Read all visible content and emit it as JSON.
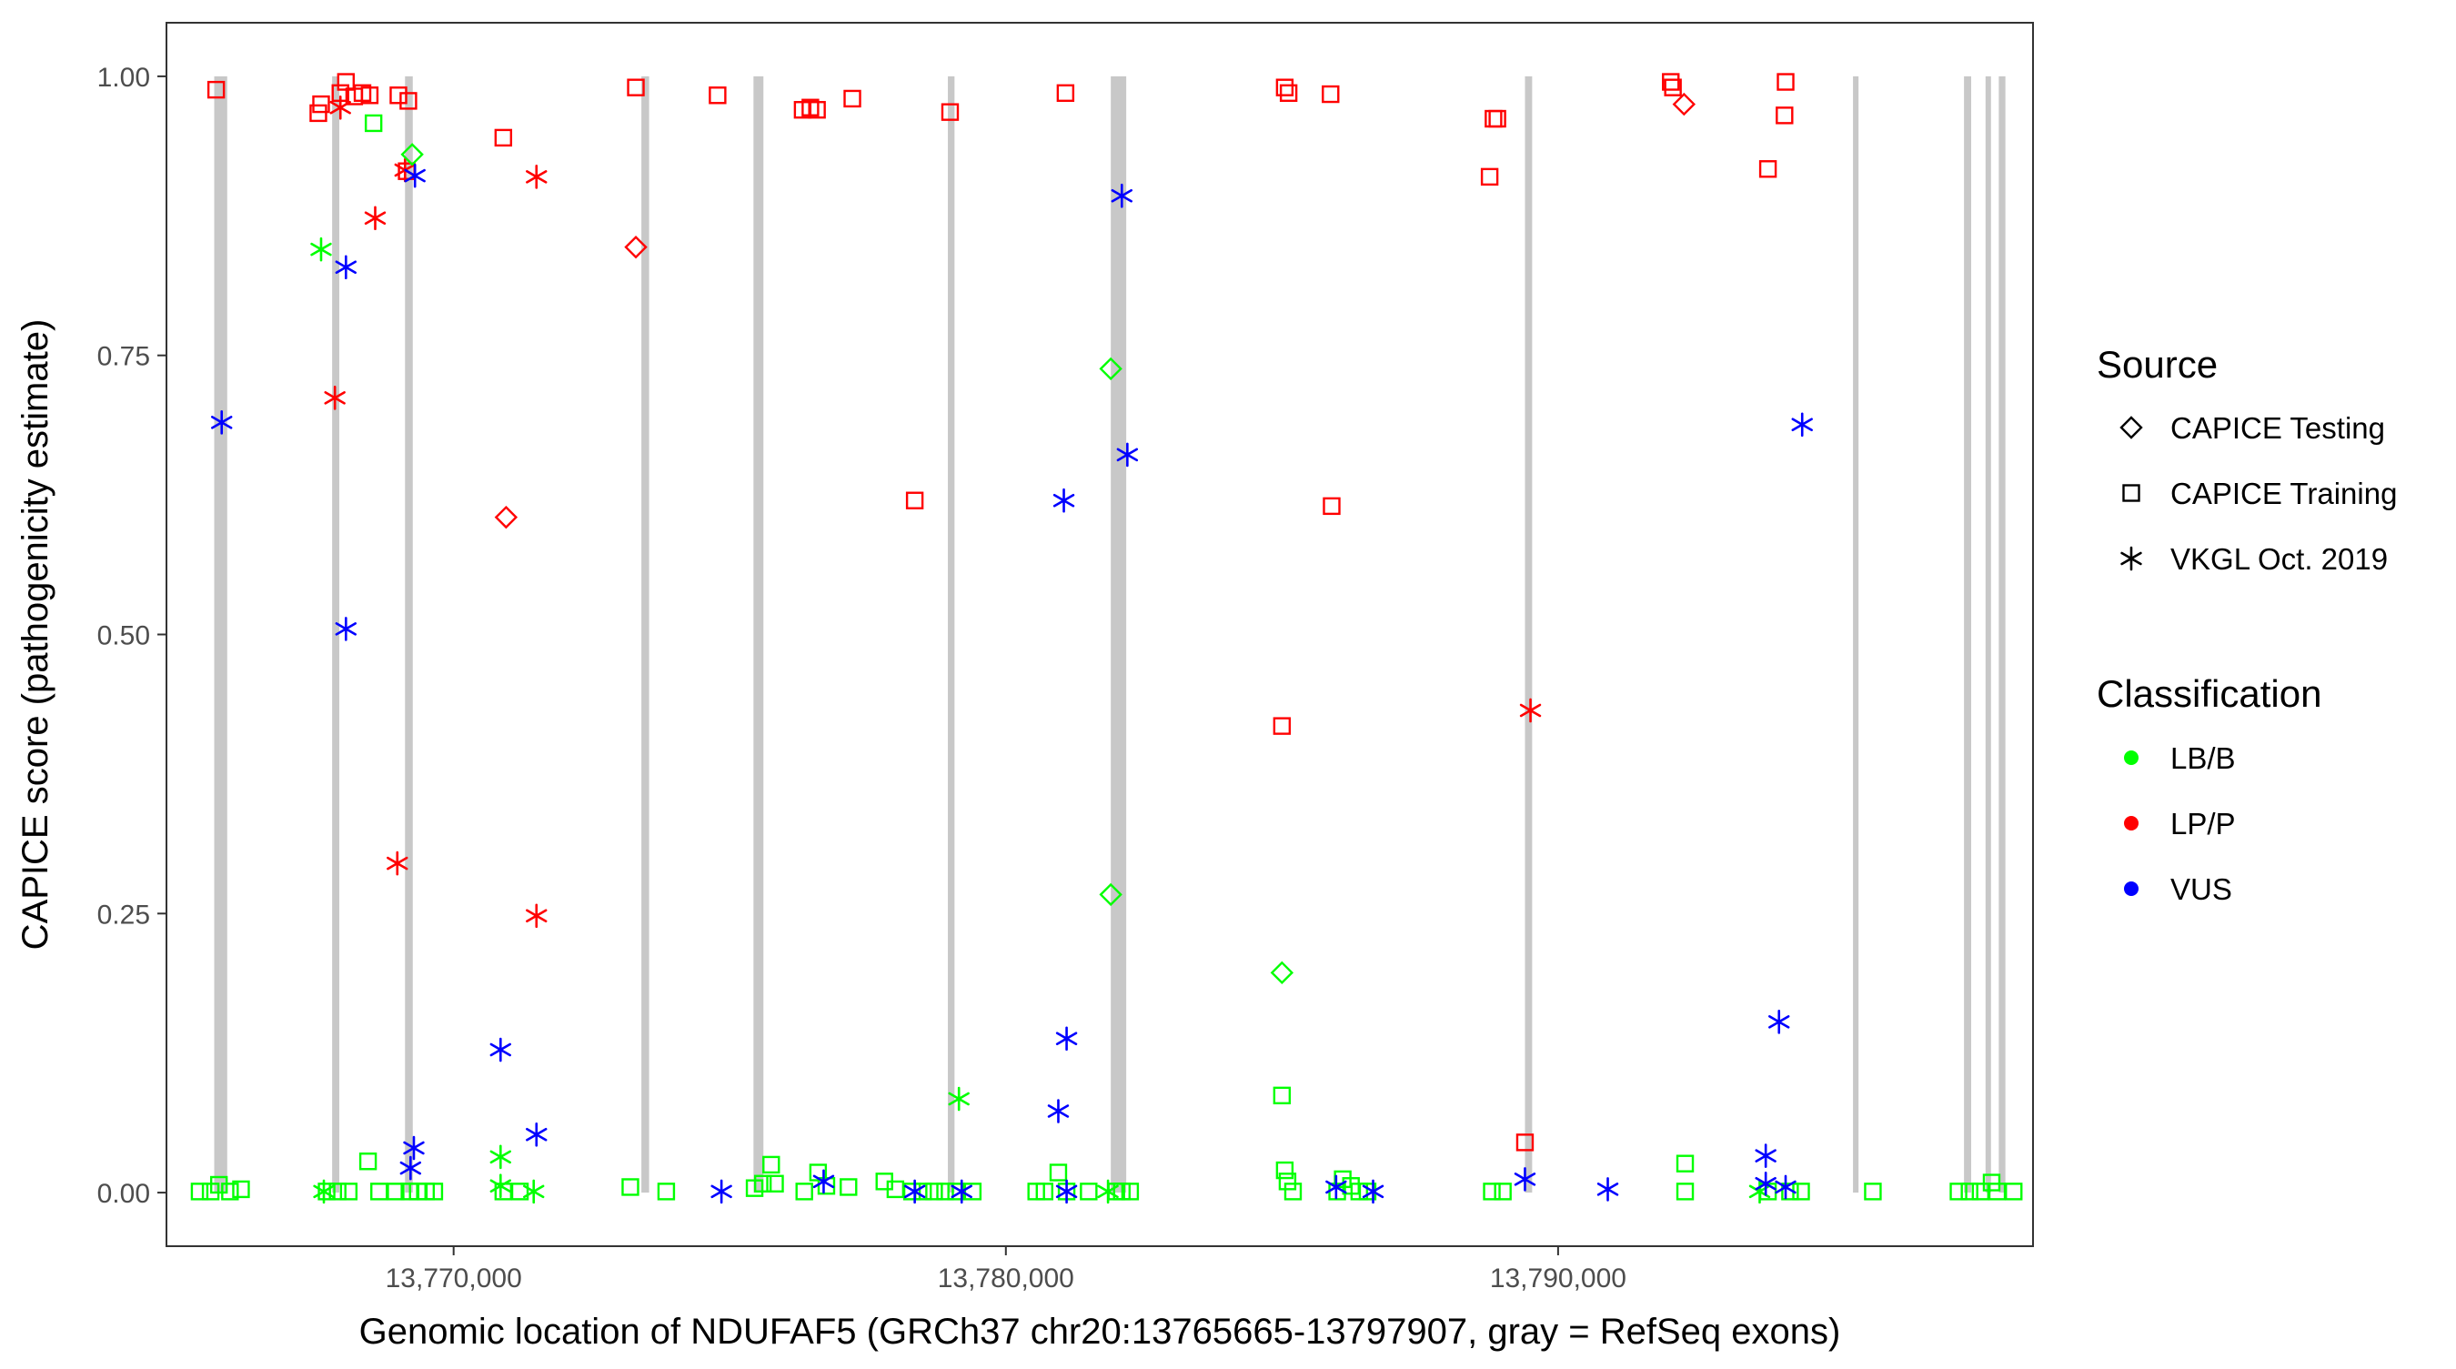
{
  "chart_data": {
    "type": "scatter",
    "xlabel": "Genomic location of NDUFAF5 (GRCh37 chr20:13765665-13797907, gray = RefSeq exons)",
    "ylabel": "CAPICE score (pathogenicity estimate)",
    "xlim": [
      13764800,
      13798600
    ],
    "ylim": [
      -0.048,
      1.048
    ],
    "x_ticks": [
      13770000,
      13780000,
      13790000
    ],
    "x_tick_labels": [
      "13,770,000",
      "13,780,000",
      "13,790,000"
    ],
    "y_ticks": [
      0,
      0.25,
      0.5,
      0.75,
      1
    ],
    "y_tick_labels": [
      "0.00",
      "0.25",
      "0.50",
      "0.75",
      "1.00"
    ],
    "grid": false,
    "exon_color": "#c8c8c8",
    "exons": [
      [
        13765665,
        13765900
      ],
      [
        13767800,
        13767930
      ],
      [
        13769120,
        13769260
      ],
      [
        13773400,
        13773540
      ],
      [
        13775430,
        13775610
      ],
      [
        13778950,
        13779070
      ],
      [
        13781900,
        13782180
      ],
      [
        13789400,
        13789530
      ],
      [
        13795340,
        13795440
      ],
      [
        13797350,
        13797480
      ],
      [
        13797740,
        13797830
      ],
      [
        13797980,
        13798100
      ]
    ],
    "legend": {
      "placement": "right",
      "source_title": "Source",
      "source_entries": [
        {
          "label": "CAPICE Testing",
          "shape": "diamond"
        },
        {
          "label": "CAPICE Training",
          "shape": "square"
        },
        {
          "label": "VKGL Oct. 2019",
          "shape": "asterisk"
        }
      ],
      "class_title": "Classification",
      "class_entries": [
        {
          "label": "LB/B",
          "color": "#00ff00"
        },
        {
          "label": "LP/P",
          "color": "#ff0000"
        },
        {
          "label": "VUS",
          "color": "#0000ff"
        }
      ]
    },
    "series": [
      {
        "source": "CAPICE Training",
        "classification": "LP/P",
        "shape": "square",
        "color": "#ff0000",
        "points": [
          [
            13765700,
            0.988
          ],
          [
            13767550,
            0.967
          ],
          [
            13767600,
            0.975
          ],
          [
            13767950,
            0.985
          ],
          [
            13768050,
            0.995
          ],
          [
            13768200,
            0.982
          ],
          [
            13768350,
            0.985
          ],
          [
            13768480,
            0.983
          ],
          [
            13769000,
            0.983
          ],
          [
            13769180,
            0.978
          ],
          [
            13769150,
            0.915
          ],
          [
            13770900,
            0.945
          ],
          [
            13773300,
            0.99
          ],
          [
            13774780,
            0.983
          ],
          [
            13776320,
            0.97
          ],
          [
            13776460,
            0.972
          ],
          [
            13776580,
            0.97
          ],
          [
            13777220,
            0.98
          ],
          [
            13778350,
            0.62
          ],
          [
            13778990,
            0.968
          ],
          [
            13781080,
            0.985
          ],
          [
            13785050,
            0.99
          ],
          [
            13785120,
            0.985
          ],
          [
            13785000,
            0.418
          ],
          [
            13785880,
            0.984
          ],
          [
            13785900,
            0.615
          ],
          [
            13788760,
            0.91
          ],
          [
            13788830,
            0.962
          ],
          [
            13788900,
            0.962
          ],
          [
            13789400,
            0.045
          ],
          [
            13792040,
            0.995
          ],
          [
            13792080,
            0.99
          ],
          [
            13793800,
            0.917
          ],
          [
            13794120,
            0.995
          ],
          [
            13794100,
            0.965
          ]
        ]
      },
      {
        "source": "VKGL Oct. 2019",
        "classification": "LP/P",
        "shape": "asterisk",
        "color": "#ff0000",
        "points": [
          [
            13767950,
            0.972
          ],
          [
            13767850,
            0.712
          ],
          [
            13768580,
            0.873
          ],
          [
            13768980,
            0.295
          ],
          [
            13769120,
            0.916
          ],
          [
            13771500,
            0.91
          ],
          [
            13771500,
            0.248
          ],
          [
            13789500,
            0.432
          ]
        ]
      },
      {
        "source": "CAPICE Testing",
        "classification": "LP/P",
        "shape": "diamond",
        "color": "#ff0000",
        "points": [
          [
            13770950,
            0.605
          ],
          [
            13773300,
            0.847
          ],
          [
            13792280,
            0.975
          ]
        ]
      },
      {
        "source": "CAPICE Testing",
        "classification": "LB/B",
        "shape": "diamond",
        "color": "#00ff00",
        "points": [
          [
            13769250,
            0.93
          ],
          [
            13781900,
            0.738
          ],
          [
            13781900,
            0.267
          ],
          [
            13785000,
            0.197
          ]
        ]
      },
      {
        "source": "CAPICE Training",
        "classification": "LB/B",
        "shape": "square",
        "color": "#00ff00",
        "points": [
          [
            13765400,
            0.001
          ],
          [
            13765600,
            0.001
          ],
          [
            13765750,
            0.007
          ],
          [
            13765950,
            0.001
          ],
          [
            13766150,
            0.003
          ],
          [
            13767700,
            0.001
          ],
          [
            13767900,
            0.001
          ],
          [
            13768100,
            0.001
          ],
          [
            13768450,
            0.028
          ],
          [
            13768550,
            0.958
          ],
          [
            13768650,
            0.001
          ],
          [
            13768950,
            0.001
          ],
          [
            13769200,
            0.001
          ],
          [
            13769350,
            0.001
          ],
          [
            13769500,
            0.001
          ],
          [
            13769650,
            0.001
          ],
          [
            13770900,
            0.001
          ],
          [
            13771200,
            0.001
          ],
          [
            13773200,
            0.005
          ],
          [
            13773850,
            0.001
          ],
          [
            13775450,
            0.004
          ],
          [
            13775600,
            0.008
          ],
          [
            13775750,
            0.025
          ],
          [
            13775820,
            0.008
          ],
          [
            13776350,
            0.001
          ],
          [
            13776600,
            0.018
          ],
          [
            13776750,
            0.006
          ],
          [
            13777150,
            0.005
          ],
          [
            13777800,
            0.01
          ],
          [
            13778000,
            0.003
          ],
          [
            13778300,
            0.001
          ],
          [
            13778500,
            0.001
          ],
          [
            13778700,
            0.001
          ],
          [
            13778900,
            0.001
          ],
          [
            13779100,
            0.001
          ],
          [
            13779400,
            0.001
          ],
          [
            13780550,
            0.001
          ],
          [
            13780700,
            0.001
          ],
          [
            13780950,
            0.018
          ],
          [
            13781100,
            0.001
          ],
          [
            13781500,
            0.001
          ],
          [
            13782000,
            0.001
          ],
          [
            13782100,
            0.001
          ],
          [
            13782250,
            0.001
          ],
          [
            13785000,
            0.087
          ],
          [
            13785050,
            0.02
          ],
          [
            13785100,
            0.01
          ],
          [
            13785200,
            0.001
          ],
          [
            13786000,
            0.001
          ],
          [
            13786100,
            0.012
          ],
          [
            13786250,
            0.006
          ],
          [
            13786400,
            0.001
          ],
          [
            13786550,
            0.001
          ],
          [
            13788800,
            0.001
          ],
          [
            13789000,
            0.001
          ],
          [
            13792300,
            0.026
          ],
          [
            13792300,
            0.001
          ],
          [
            13793800,
            0.001
          ],
          [
            13794200,
            0.001
          ],
          [
            13794400,
            0.001
          ],
          [
            13795700,
            0.001
          ],
          [
            13797250,
            0.001
          ],
          [
            13797450,
            0.001
          ],
          [
            13797650,
            0.001
          ],
          [
            13797850,
            0.009
          ],
          [
            13797950,
            0.001
          ],
          [
            13798250,
            0.001
          ]
        ]
      },
      {
        "source": "VKGL Oct. 2019",
        "classification": "LB/B",
        "shape": "asterisk",
        "color": "#00ff00",
        "points": [
          [
            13767600,
            0.845
          ],
          [
            13767650,
            0.001
          ],
          [
            13770850,
            0.032
          ],
          [
            13770850,
            0.006
          ],
          [
            13771450,
            0.001
          ],
          [
            13779150,
            0.084
          ],
          [
            13781850,
            0.001
          ],
          [
            13793650,
            0.001
          ]
        ]
      },
      {
        "source": "VKGL Oct. 2019",
        "classification": "VUS",
        "shape": "asterisk",
        "color": "#0000ff",
        "points": [
          [
            13765800,
            0.69
          ],
          [
            13768050,
            0.829
          ],
          [
            13768050,
            0.505
          ],
          [
            13769300,
            0.911
          ],
          [
            13769280,
            0.04
          ],
          [
            13769220,
            0.022
          ],
          [
            13770850,
            0.128
          ],
          [
            13771500,
            0.052
          ],
          [
            13774850,
            0.001
          ],
          [
            13776700,
            0.01
          ],
          [
            13778350,
            0.001
          ],
          [
            13779200,
            0.001
          ],
          [
            13781050,
            0.62
          ],
          [
            13781100,
            0.138
          ],
          [
            13780950,
            0.073
          ],
          [
            13781100,
            0.001
          ],
          [
            13782100,
            0.893
          ],
          [
            13782200,
            0.661
          ],
          [
            13785980,
            0.005
          ],
          [
            13786650,
            0.001
          ],
          [
            13789400,
            0.012
          ],
          [
            13790900,
            0.003
          ],
          [
            13793760,
            0.033
          ],
          [
            13793760,
            0.008
          ],
          [
            13794000,
            0.153
          ],
          [
            13794120,
            0.005
          ],
          [
            13794420,
            0.688
          ]
        ]
      }
    ]
  }
}
